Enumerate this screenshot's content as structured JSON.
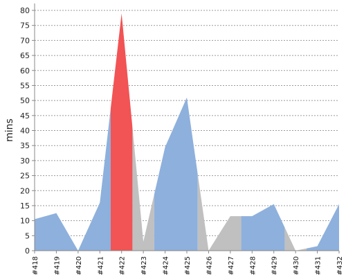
{
  "chart_data": {
    "type": "area",
    "ylabel": "mins",
    "ylim": [
      0,
      80
    ],
    "yticks": [
      0,
      5,
      10,
      15,
      20,
      25,
      30,
      35,
      40,
      45,
      50,
      55,
      60,
      65,
      70,
      75,
      80
    ],
    "grid": true,
    "categories": [
      "#418",
      "#419",
      "#420",
      "#421",
      "#422",
      "#423",
      "#424",
      "#425",
      "#426",
      "#427",
      "#428",
      "#429",
      "#430",
      "#431",
      "#432"
    ],
    "values": [
      10.5,
      12.5,
      0,
      16,
      79,
      3,
      34.5,
      51,
      0,
      11.5,
      11.5,
      15.5,
      0,
      1.5,
      15.5
    ],
    "bands": [
      {
        "from": 0,
        "to": 3.5,
        "status": "success"
      },
      {
        "from": 3.5,
        "to": 4.5,
        "status": "failed"
      },
      {
        "from": 4.5,
        "to": 5.5,
        "status": "unknown"
      },
      {
        "from": 5.5,
        "to": 7.5,
        "status": "success"
      },
      {
        "from": 7.5,
        "to": 9.5,
        "status": "unknown"
      },
      {
        "from": 9.5,
        "to": 11.5,
        "status": "success"
      },
      {
        "from": 11.5,
        "to": 12.5,
        "status": "unknown"
      },
      {
        "from": 12.5,
        "to": 14,
        "status": "success"
      }
    ],
    "colors": {
      "success": "#8eb0dc",
      "failed": "#f25354",
      "unknown": "#c0c0c0",
      "grid": "#999999",
      "axis": "#888888"
    }
  }
}
